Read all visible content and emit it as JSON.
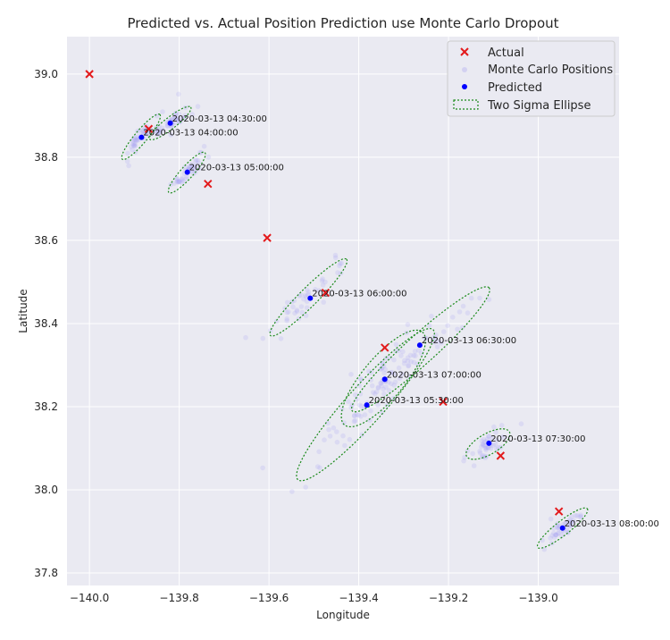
{
  "chart_data": {
    "type": "scatter",
    "title": "Predicted vs. Actual Position Prediction use Monte Carlo Dropout",
    "xlabel": "Longitude",
    "ylabel": "Latitude",
    "xlim": [
      -140.05,
      -138.82
    ],
    "ylim": [
      37.77,
      39.09
    ],
    "xticks": [
      -140.0,
      -139.8,
      -139.6,
      -139.4,
      -139.2,
      -139.0
    ],
    "xtick_labels": [
      "−140.0",
      "−139.8",
      "−139.6",
      "−139.4",
      "−139.2",
      "−139.0"
    ],
    "yticks": [
      37.8,
      38.0,
      38.2,
      38.4,
      38.6,
      38.8,
      39.0
    ],
    "ytick_labels": [
      "37.8",
      "38.0",
      "38.2",
      "38.4",
      "38.6",
      "38.8",
      "39.0"
    ],
    "grid": true,
    "legend_position": "top-right",
    "legend": [
      {
        "name": "Actual",
        "marker": "x",
        "color": "#e31a1c"
      },
      {
        "name": "Monte Carlo Positions",
        "marker": "dot-faint",
        "color": "#a9a3f0"
      },
      {
        "name": "Predicted",
        "marker": "dot",
        "color": "#0000ff"
      },
      {
        "name": "Two Sigma Ellipse",
        "marker": "dotted-rect",
        "color": "#1a8a1a"
      }
    ],
    "series": [
      {
        "name": "Actual",
        "points": [
          {
            "x": -140.0,
            "y": 39.0
          },
          {
            "x": -139.868,
            "y": 38.868
          },
          {
            "x": -139.736,
            "y": 38.736
          },
          {
            "x": -139.604,
            "y": 38.606
          },
          {
            "x": -139.474,
            "y": 38.474
          },
          {
            "x": -139.342,
            "y": 38.342
          },
          {
            "x": -139.212,
            "y": 38.212
          },
          {
            "x": -139.084,
            "y": 38.082
          },
          {
            "x": -138.954,
            "y": 37.948
          }
        ]
      },
      {
        "name": "Predicted",
        "points": [
          {
            "x": -139.884,
            "y": 38.848,
            "label": "2020-03-13 04:00:00"
          },
          {
            "x": -139.82,
            "y": 38.882,
            "label": "2020-03-13 04:30:00"
          },
          {
            "x": -139.782,
            "y": 38.764,
            "label": "2020-03-13 05:00:00"
          },
          {
            "x": -139.382,
            "y": 38.204,
            "label": "2020-03-13 05:30:00"
          },
          {
            "x": -139.508,
            "y": 38.461,
            "label": "2020-03-13 06:00:00"
          },
          {
            "x": -139.264,
            "y": 38.348,
            "label": "2020-03-13 06:30:00"
          },
          {
            "x": -139.342,
            "y": 38.266,
            "label": "2020-03-13 07:00:00"
          },
          {
            "x": -139.11,
            "y": 38.112,
            "label": "2020-03-13 07:30:00"
          },
          {
            "x": -138.946,
            "y": 37.908,
            "label": "2020-03-13 08:00:00"
          }
        ]
      },
      {
        "name": "Two Sigma Ellipse",
        "ellipses": [
          {
            "cx": -139.885,
            "cy": 38.849,
            "rx": 0.065,
            "ry": 0.015,
            "angle": -50
          },
          {
            "cx": -139.82,
            "cy": 38.882,
            "rx": 0.058,
            "ry": 0.014,
            "angle": -38
          },
          {
            "cx": -139.783,
            "cy": 38.763,
            "rx": 0.06,
            "ry": 0.015,
            "angle": -48
          },
          {
            "cx": -139.385,
            "cy": 38.205,
            "rx": 0.225,
            "ry": 0.045,
            "angle": -48
          },
          {
            "cx": -139.512,
            "cy": 38.463,
            "rx": 0.12,
            "ry": 0.022,
            "angle": -45
          },
          {
            "cx": -139.262,
            "cy": 38.338,
            "rx": 0.205,
            "ry": 0.035,
            "angle": -42
          },
          {
            "cx": -139.345,
            "cy": 38.268,
            "rx": 0.135,
            "ry": 0.05,
            "angle": -50
          },
          {
            "cx": -139.112,
            "cy": 38.11,
            "rx": 0.055,
            "ry": 0.025,
            "angle": -30
          },
          {
            "cx": -138.946,
            "cy": 37.908,
            "rx": 0.07,
            "ry": 0.017,
            "angle": -38
          }
        ]
      },
      {
        "name": "Monte Carlo Positions",
        "points_per_cluster": 45,
        "clusters_follow": "Two Sigma Ellipse"
      }
    ]
  }
}
